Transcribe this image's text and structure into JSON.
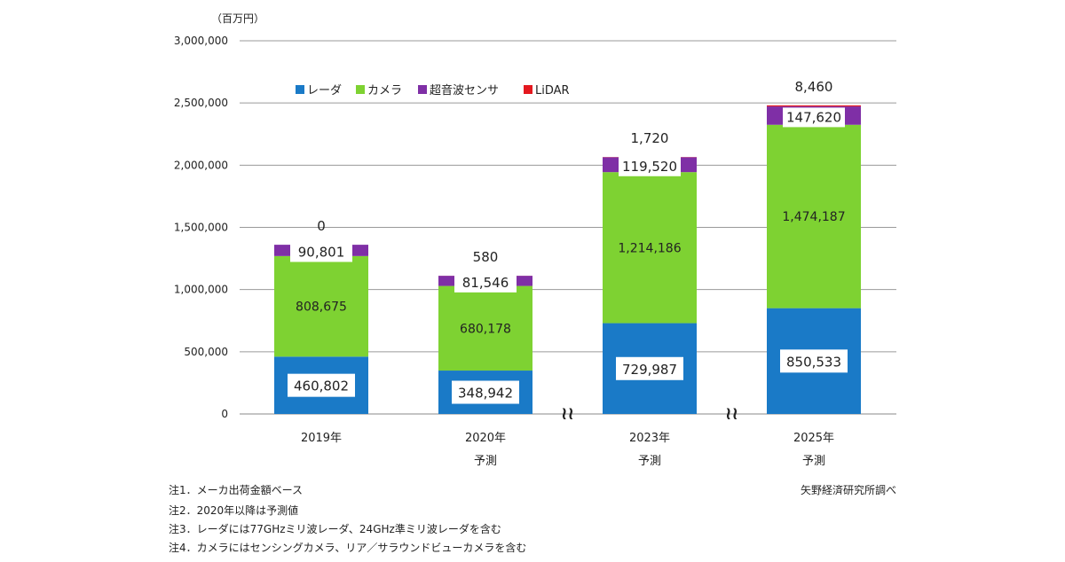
{
  "chart_data": {
    "type": "bar",
    "stacked": true,
    "unit_label": "（百万円）",
    "y_ticks": [
      "3,000,000",
      "2,500,000",
      "2,000,000",
      "1,500,000",
      "1,000,000",
      "500,000",
      "0"
    ],
    "ylim": [
      0,
      3000000
    ],
    "grid": true,
    "legend_position": "top-left",
    "categories": [
      {
        "year": "2019年",
        "sub": ""
      },
      {
        "year": "2020年",
        "sub": "予測"
      },
      {
        "year": "2023年",
        "sub": "予測"
      },
      {
        "year": "2025年",
        "sub": "予測"
      }
    ],
    "series": [
      {
        "name": "レーダ",
        "color": "#1a7ac7",
        "values": [
          460802,
          348942,
          729987,
          850533
        ],
        "labels": [
          "460,802",
          "348,942",
          "729,987",
          "850,533"
        ]
      },
      {
        "name": "カメラ",
        "color": "#7ed232",
        "values": [
          808675,
          680178,
          1214186,
          1474187
        ],
        "labels": [
          "808,675",
          "680,178",
          "1,214,186",
          "1,474,187"
        ]
      },
      {
        "name": "超音波センサ",
        "color": "#7f2fa6",
        "values": [
          90801,
          81546,
          119520,
          147620
        ],
        "labels": [
          "90,801",
          "81,546",
          "119,520",
          "147,620"
        ]
      },
      {
        "name": "LiDAR",
        "color": "#e4181f",
        "values": [
          0,
          580,
          1720,
          8460
        ],
        "labels": [
          "0",
          "580",
          "1,720",
          "8,460"
        ]
      }
    ],
    "axis_break_symbol": "≀≀",
    "axis_break_after": [
      1,
      2
    ]
  },
  "footer": {
    "notes": [
      "注1．メーカ出荷金額ベース",
      "注2．2020年以降は予測値",
      "注3．レーダには77GHzミリ波レーダ、24GHz準ミリ波レーダを含む",
      "注4．カメラにはセンシングカメラ、リア／サラウンドビューカメラを含む"
    ],
    "source": "矢野経済研究所調べ"
  }
}
